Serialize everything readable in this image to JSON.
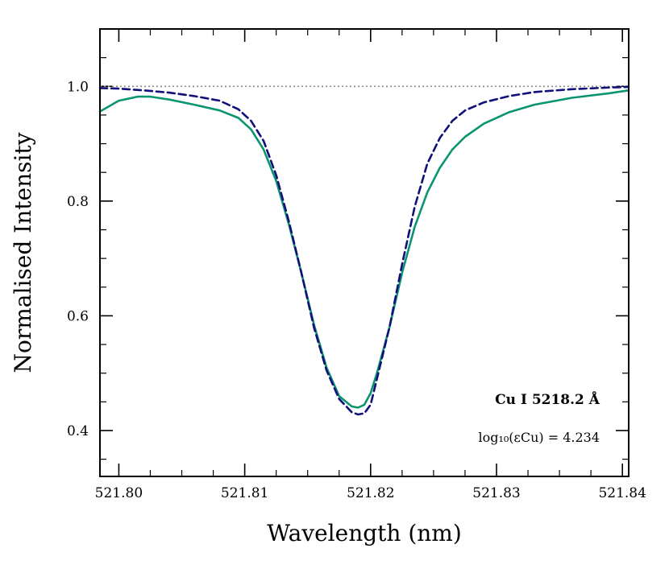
{
  "chart_data": {
    "type": "line",
    "xlabel": "Wavelength (nm)",
    "ylabel": "Normalised Intensity",
    "xlim": [
      521.7985,
      521.8405
    ],
    "ylim": [
      0.32,
      1.1
    ],
    "x_ticks": [
      521.8,
      521.81,
      521.82,
      521.83,
      521.84
    ],
    "x_tick_labels": [
      "521.80",
      "521.81",
      "521.82",
      "521.83",
      "521.84"
    ],
    "y_ticks": [
      0.4,
      0.6,
      0.8,
      1.0
    ],
    "y_tick_labels": [
      "0.4",
      "0.6",
      "0.8",
      "1.0"
    ],
    "reference_line": {
      "y": 1.0,
      "style": "dotted",
      "color": "#888888"
    },
    "annotation": {
      "line_label": "Cu I  5218.2 Å",
      "abundance_label": "log₁₀(εCu) = 4.234",
      "placement": "bottom-right"
    },
    "grid": false,
    "series": [
      {
        "style": "solid",
        "color": "#0a9470",
        "x": [
          521.7985,
          521.8,
          521.8015,
          521.8025,
          521.804,
          521.806,
          521.808,
          521.8095,
          521.8105,
          521.8115,
          521.8125,
          521.8135,
          521.8145,
          521.8155,
          521.8165,
          521.8175,
          521.8185,
          521.819,
          521.8195,
          521.82,
          521.8205,
          521.8215,
          521.8225,
          521.8235,
          521.8245,
          521.8255,
          521.8265,
          521.8275,
          521.829,
          521.831,
          521.833,
          521.836,
          521.839,
          521.8405
        ],
        "y": [
          0.956,
          0.975,
          0.982,
          0.982,
          0.977,
          0.968,
          0.958,
          0.945,
          0.925,
          0.89,
          0.835,
          0.76,
          0.675,
          0.585,
          0.51,
          0.46,
          0.442,
          0.44,
          0.445,
          0.465,
          0.5,
          0.58,
          0.675,
          0.755,
          0.815,
          0.858,
          0.89,
          0.912,
          0.935,
          0.955,
          0.968,
          0.98,
          0.988,
          0.993
        ]
      },
      {
        "style": "dashed",
        "color": "#10107a",
        "x": [
          521.7985,
          521.8,
          521.802,
          521.804,
          521.806,
          521.808,
          521.8095,
          521.8105,
          521.8115,
          521.8125,
          521.8135,
          521.8145,
          521.8155,
          521.8165,
          521.8175,
          521.8185,
          521.819,
          521.8195,
          521.82,
          521.8205,
          521.8215,
          521.8225,
          521.8235,
          521.8245,
          521.8255,
          521.8265,
          521.8275,
          521.829,
          521.831,
          521.833,
          521.836,
          521.839,
          521.8405
        ],
        "y": [
          0.997,
          0.996,
          0.993,
          0.989,
          0.983,
          0.975,
          0.96,
          0.94,
          0.905,
          0.845,
          0.765,
          0.675,
          0.58,
          0.505,
          0.455,
          0.432,
          0.428,
          0.43,
          0.445,
          0.49,
          0.58,
          0.69,
          0.79,
          0.865,
          0.91,
          0.94,
          0.958,
          0.972,
          0.983,
          0.99,
          0.995,
          0.998,
          0.999
        ]
      }
    ]
  }
}
